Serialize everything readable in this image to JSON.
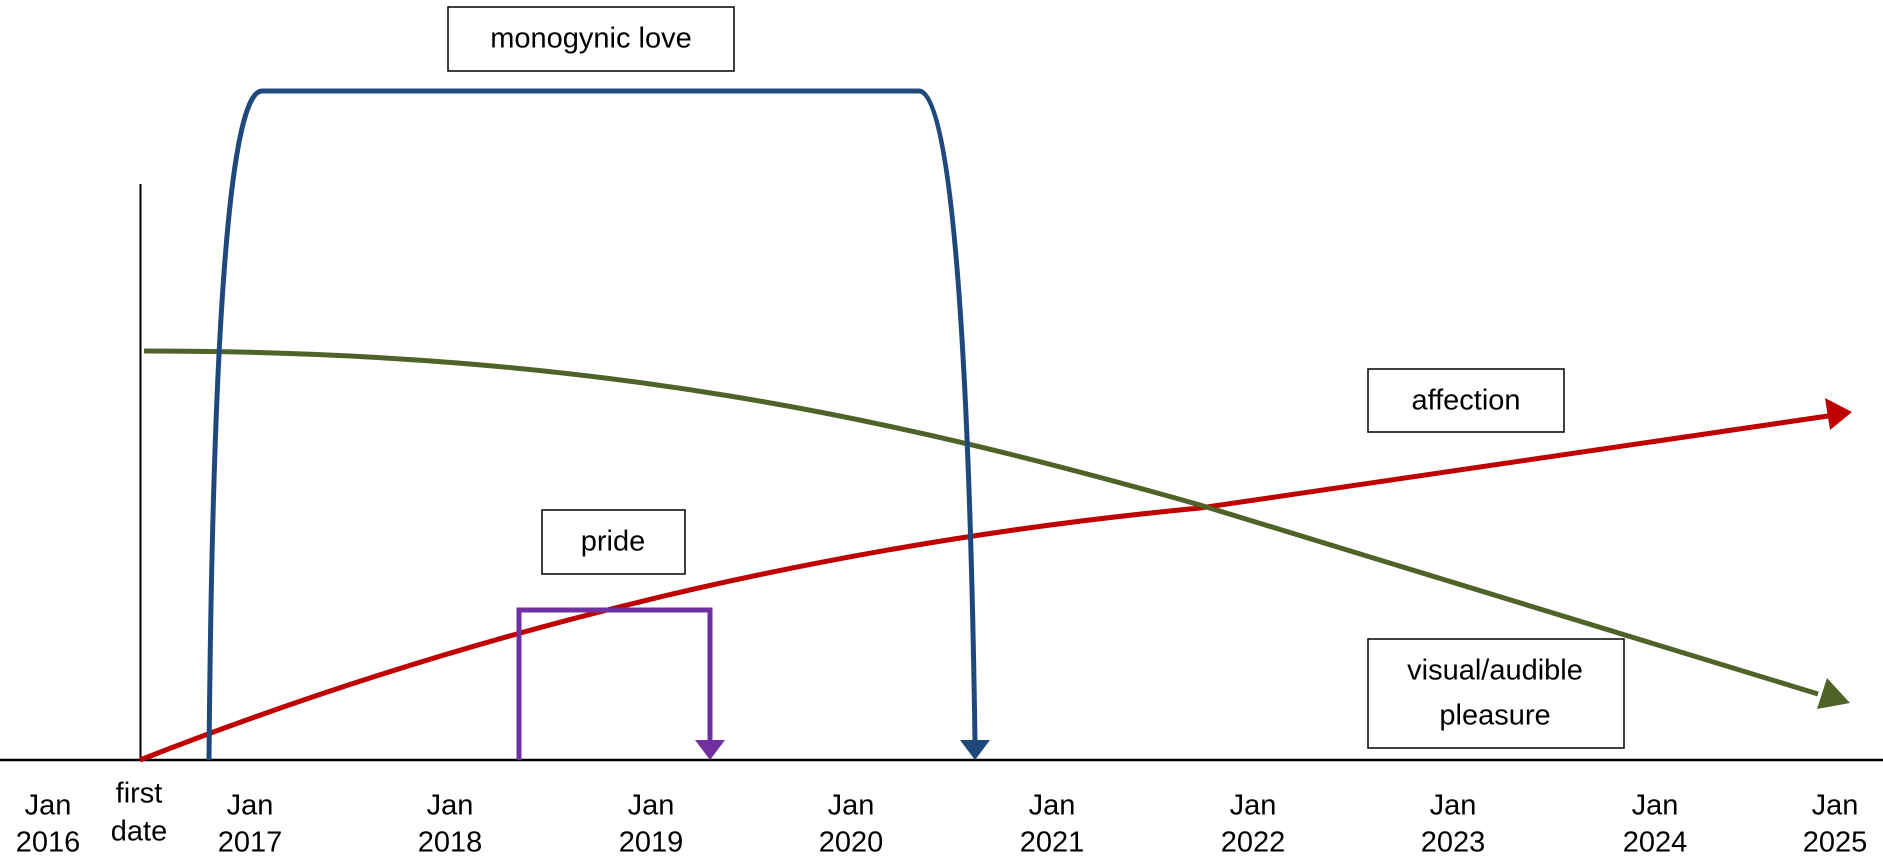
{
  "timeline": {
    "first_date": [
      "first",
      "date"
    ],
    "ticks": [
      [
        "Jan",
        "2016"
      ],
      [
        "Jan",
        "2017"
      ],
      [
        "Jan",
        "2018"
      ],
      [
        "Jan",
        "2019"
      ],
      [
        "Jan",
        "2020"
      ],
      [
        "Jan",
        "2021"
      ],
      [
        "Jan",
        "2022"
      ],
      [
        "Jan",
        "2023"
      ],
      [
        "Jan",
        "2024"
      ],
      [
        "Jan",
        "2025"
      ]
    ]
  },
  "labels": {
    "monogynic_love": "monogynic love",
    "pride": "pride",
    "affection": "affection",
    "visual_audible_pleasure": [
      "visual/audible",
      "pleasure"
    ]
  }
}
